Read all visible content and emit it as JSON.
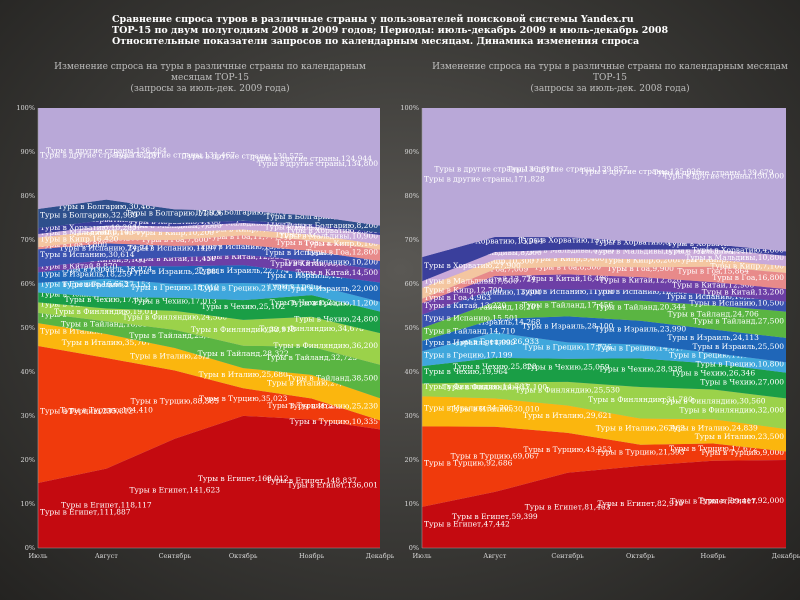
{
  "page": {
    "title_lines": [
      "Сравнение спроса туров в различные страны у пользователей поисковой системы Yandex.ru",
      "TOP-15 по двум полугодиям 2008 и 2009 годов; Периоды: июль-декабрь 2009 и июль-декабрь 2008",
      "Относительные показатели запросов по календарным месяцам. Динамика изменения спроса"
    ]
  },
  "colors": {
    "Египет": "#c40a10",
    "Турция": "#f03a0c",
    "Италия": "#fbb60e",
    "Тайланд": "#5ab542",
    "Финляндия": "#9bd24a",
    "Чехия": "#1a9e46",
    "Греция": "#3fa7dc",
    "Израиль": "#1f66b8",
    "Китай": "#6d3fa6",
    "Испания": "#3a52b0",
    "Гоа": "#e88a8a",
    "Кипр": "#f4c6a0",
    "Мальдивы": "#c9a9d9",
    "Хорватия": "#3a3f9c",
    "Болгария": "#2e4f8c",
    "другие страны": "#b9a8d8"
  },
  "chart_data": [
    {
      "type": "area",
      "stacked": "percent",
      "title": "Изменение спроса на туры в различные страны по календарным месяцам ТОР-15",
      "subtitle": "(запросы за июль-дек. 2009 года)",
      "x": [
        "Июль",
        "Август",
        "Сентябрь",
        "Октябрь",
        "Ноябрь",
        "Декабрь"
      ],
      "y_ticks": [
        "0%",
        "10%",
        "20%",
        "30%",
        "40%",
        "50%",
        "60%",
        "70%",
        "80%",
        "90%",
        "100%"
      ],
      "ylim": [
        0,
        100
      ],
      "series": [
        {
          "name": "Египет",
          "label_prefix": "Туры в Египет",
          "values": [
            111887,
            118117,
            141623,
            168012,
            148837,
            136001
          ]
        },
        {
          "name": "Турция",
          "label_prefix": "Туры в Турцию",
          "values": [
            235812,
            164410,
            88385,
            35023,
            24536,
            10335
          ]
        },
        {
          "name": "Италия",
          "label_prefix": "Туры в Италию",
          "values": [
            39536,
            35707,
            29273,
            25680,
            27314,
            25230
          ]
        },
        {
          "name": "Тайланд",
          "label_prefix": "Туры в Тайланд",
          "values": [
            17560,
            18814,
            23448,
            28322,
            32723,
            38500
          ]
        },
        {
          "name": "Финляндия",
          "label_prefix": "Туры в Финляндию",
          "values": [
            18013,
            19011,
            24580,
            32918,
            34678,
            36200
          ]
        },
        {
          "name": "Чехия",
          "label_prefix": "Туры в Чехию",
          "values": [
            17016,
            17013,
            17013,
            25102,
            25156,
            24800
          ]
        },
        {
          "name": "Греция",
          "label_prefix": "Туры в Грецию",
          "values": [
            16663,
            27153,
            18019,
            21719,
            12466,
            11200
          ]
        },
        {
          "name": "Израиль",
          "label_prefix": "Туры в Израиль",
          "values": [
            18259,
            18974,
            22881,
            22774,
            12466,
            22000
          ]
        },
        {
          "name": "Китай",
          "label_prefix": "Туры в Китай",
          "values": [
            8870,
            9100,
            11450,
            12950,
            15000,
            14500
          ]
        },
        {
          "name": "Испания",
          "label_prefix": "Туры в Испанию",
          "values": [
            30614,
            24747,
            14977,
            13052,
            11000,
            10200
          ]
        },
        {
          "name": "Гоа",
          "label_prefix": "Туры в Гоа",
          "values": [
            3800,
            5200,
            7600,
            11777,
            12483,
            12800
          ]
        },
        {
          "name": "Кипр",
          "label_prefix": "Туры в Кипр",
          "values": [
            16420,
            14600,
            10200,
            7540,
            6900,
            6100
          ]
        },
        {
          "name": "Мальдивы",
          "label_prefix": "Туры в Мальдивы",
          "values": [
            6100,
            6600,
            7500,
            8200,
            9300,
            10900
          ]
        },
        {
          "name": "Хорватия",
          "label_prefix": "Туры в Хорватию",
          "values": [
            10200,
            8100,
            4100,
            2900,
            2600,
            2500
          ]
        },
        {
          "name": "Болгария",
          "label_prefix": "Туры в Болгарию",
          "values": [
            32939,
            30463,
            17826,
            12757,
            9800,
            8200
          ]
        },
        {
          "name": "другие страны",
          "label_prefix": "Туры в другие страны",
          "values": [
            173791,
            136264,
            131467,
            130575,
            124944,
            134800
          ]
        }
      ]
    },
    {
      "type": "area",
      "stacked": "percent",
      "title": "Изменение спроса на туры в различные страны по календарным месяцам ТОР-15",
      "subtitle": "(запросы за июль-дек. 2008 года)",
      "x": [
        "Июль",
        "Август",
        "Сентябрь",
        "Октябрь",
        "Ноябрь",
        "Декабрь"
      ],
      "y_ticks": [
        "0%",
        "10%",
        "20%",
        "30%",
        "40%",
        "50%",
        "60%",
        "70%",
        "80%",
        "90%",
        "100%"
      ],
      "ylim": [
        0,
        100
      ],
      "series": [
        {
          "name": "Египет",
          "label_prefix": "Туры в Египет",
          "values": [
            47442,
            59399,
            81463,
            82910,
            89417,
            92000
          ]
        },
        {
          "name": "Турция",
          "label_prefix": "Туры в Турцию",
          "values": [
            92686,
            69067,
            43253,
            21393,
            17672,
            9000
          ]
        },
        {
          "name": "Италия",
          "label_prefix": "Туры в Италию",
          "values": [
            34705,
            30010,
            29621,
            26463,
            24839,
            23500
          ]
        },
        {
          "name": "Финляндия",
          "label_prefix": "Туры в Финляндию",
          "values": [
            14763,
            17100,
            25530,
            31780,
            30560,
            32000
          ]
        },
        {
          "name": "Чехия",
          "label_prefix": "Туры в Чехию",
          "values": [
            19964,
            25828,
            25059,
            28938,
            26346,
            27000
          ]
        },
        {
          "name": "Греция",
          "label_prefix": "Туры в Грецию",
          "values": [
            17199,
            26933,
            17726,
            14017,
            11000,
            10800
          ]
        },
        {
          "name": "Израиль",
          "label_prefix": "Туры в Израиль",
          "values": [
            11999,
            14268,
            28100,
            23990,
            24113,
            25500
          ]
        },
        {
          "name": "Тайланд",
          "label_prefix": "Туры в Тайланд",
          "values": [
            14710,
            18201,
            17456,
            20344,
            24706,
            27500
          ]
        },
        {
          "name": "Испания",
          "label_prefix": "Туры в Испанию",
          "values": [
            15501,
            13600,
            11700,
            10900,
            10857,
            10500
          ]
        },
        {
          "name": "Китай",
          "label_prefix": "Туры в Китай",
          "values": [
            13220,
            13724,
            16406,
            12820,
            12900,
            13200
          ]
        },
        {
          "name": "Гоа",
          "label_prefix": "Туры в Гоа",
          "values": [
            4963,
            7009,
            8500,
            9900,
            15864,
            16800
          ]
        },
        {
          "name": "Кипр",
          "label_prefix": "Туры в Кипр",
          "values": [
            12700,
            10300,
            9400,
            8200,
            7600,
            7100
          ]
        },
        {
          "name": "Мальдивы",
          "label_prefix": "Туры в Мальдивы",
          "values": [
            7500,
            8200,
            8900,
            9700,
            10140,
            10800
          ]
        },
        {
          "name": "Хорватия",
          "label_prefix": "Туры в Хорватию",
          "values": [
            27900,
            15914,
            13464,
            8000,
            5200,
            4600
          ]
        },
        {
          "name": "другие страны",
          "label_prefix": "Туры в другие страны",
          "values": [
            171828,
            136611,
            139857,
            135026,
            139679,
            150000
          ]
        }
      ]
    }
  ]
}
